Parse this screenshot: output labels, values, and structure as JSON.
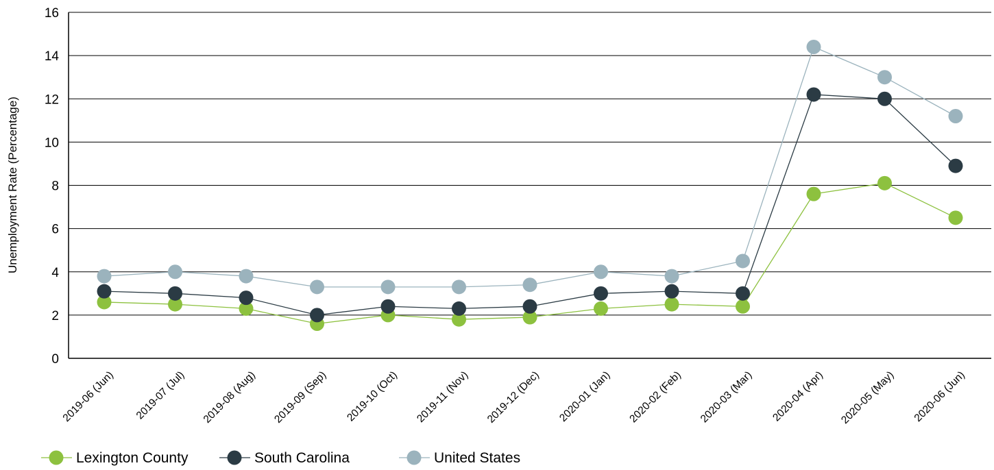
{
  "chart_data": {
    "type": "line",
    "title": "",
    "xlabel": "",
    "ylabel": "Unemployment Rate (Percentage)",
    "ylim": [
      0,
      16
    ],
    "yticks": [
      0,
      2,
      4,
      6,
      8,
      10,
      12,
      14,
      16
    ],
    "grid": true,
    "legend_position": "bottom-left",
    "categories": [
      "2019-06 (Jun)",
      "2019-07 (Jul)",
      "2019-08 (Aug)",
      "2019-09 (Sep)",
      "2019-10 (Oct)",
      "2019-11 (Nov)",
      "2019-12 (Dec)",
      "2020-01 (Jan)",
      "2020-02 (Feb)",
      "2020-03 (Mar)",
      "2020-04 (Apr)",
      "2020-05 (May)",
      "2020-06 (Jun)"
    ],
    "series": [
      {
        "name": "Lexington County",
        "color": "#8dc13f",
        "values": [
          2.6,
          2.5,
          2.3,
          1.6,
          2.0,
          1.8,
          1.9,
          2.3,
          2.5,
          2.4,
          7.6,
          8.1,
          6.5
        ]
      },
      {
        "name": "South Carolina",
        "color": "#2b3b44",
        "values": [
          3.1,
          3.0,
          2.8,
          2.0,
          2.4,
          2.3,
          2.4,
          3.0,
          3.1,
          3.0,
          12.2,
          12.0,
          8.9
        ]
      },
      {
        "name": "United States",
        "color": "#9bb3bd",
        "values": [
          3.8,
          4.0,
          3.8,
          3.3,
          3.3,
          3.3,
          3.4,
          4.0,
          3.8,
          4.5,
          14.4,
          13.0,
          11.2
        ]
      }
    ]
  }
}
